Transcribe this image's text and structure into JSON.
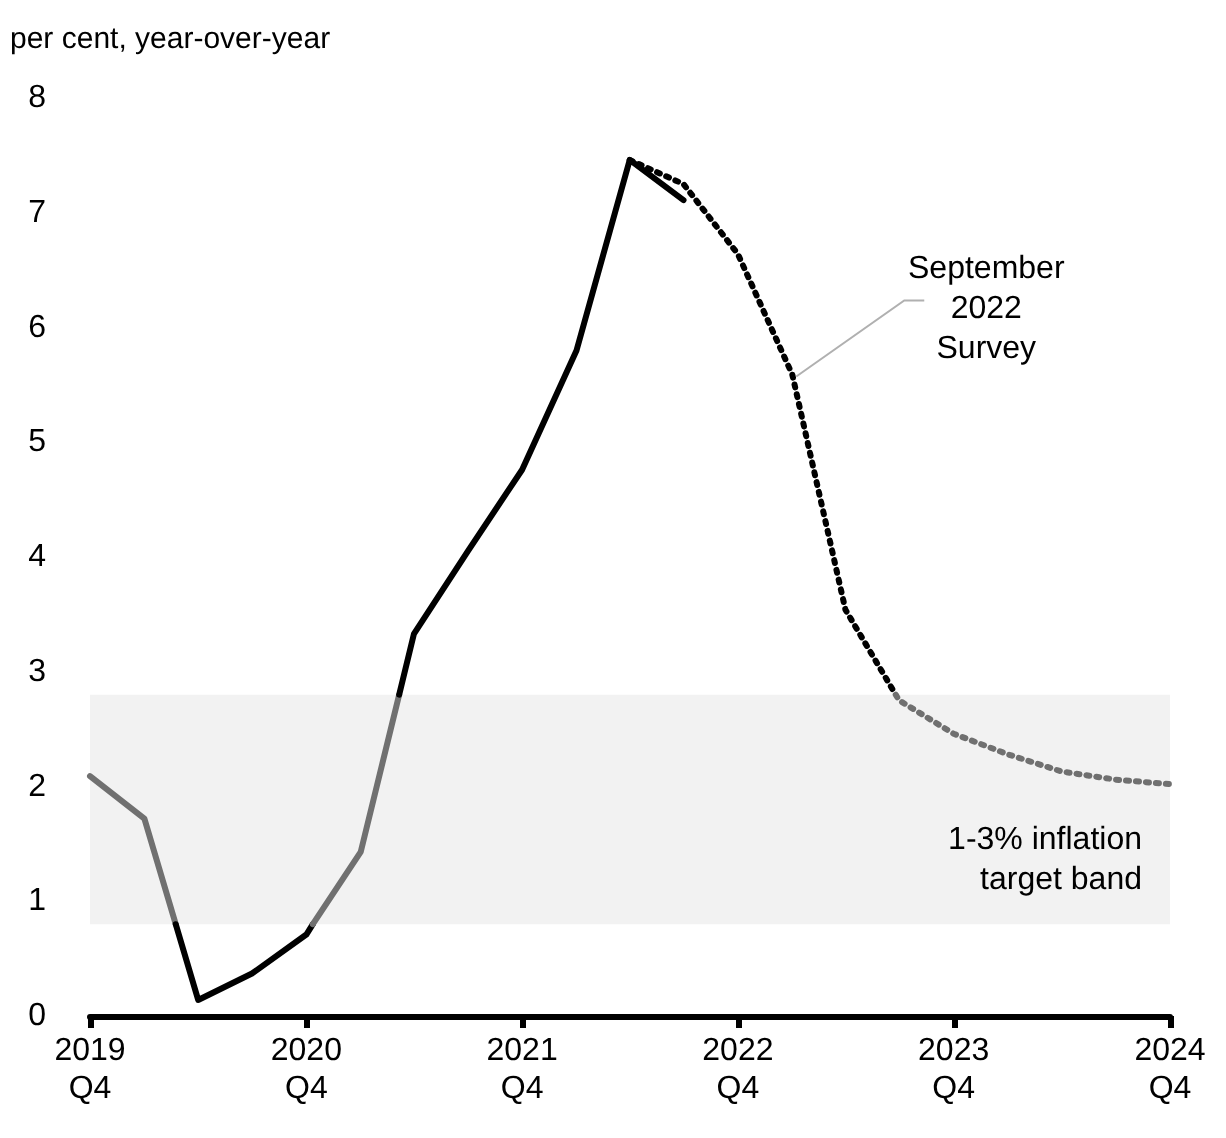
{
  "chart_data": {
    "type": "line",
    "ylabel": "per cent, year-over-year",
    "xlim": [
      "2019-10",
      "2024-10"
    ],
    "xticks": [
      {
        "value": "2019-10",
        "label": "2019\nQ4"
      },
      {
        "value": "2020-10",
        "label": "2020\nQ4"
      },
      {
        "value": "2021-10",
        "label": "2021\nQ4"
      },
      {
        "value": "2022-10",
        "label": "2022\nQ4"
      },
      {
        "value": "2023-10",
        "label": "2023\nQ4"
      },
      {
        "value": "2024-10",
        "label": "2024\nQ4"
      }
    ],
    "ylim": [
      0,
      8
    ],
    "yticks": [
      0,
      1,
      2,
      3,
      4,
      5,
      6,
      7,
      8
    ],
    "grid": false,
    "marker": "none",
    "series": [
      {
        "color": "#707070",
        "line_style": "solid",
        "x": [
          "2019-10",
          "2020-01",
          "2020-02-23"
        ],
        "values": [
          2.09,
          1.72,
          0.8
        ]
      },
      {
        "color": "#000000",
        "line_style": "solid",
        "x": [
          "2020-02-23",
          "2020-04",
          "2020-07",
          "2020-10",
          "2020-10-12"
        ],
        "values": [
          0.8,
          0.14,
          0.37,
          0.71,
          0.8
        ]
      },
      {
        "color": "#707070",
        "line_style": "solid",
        "x": [
          "2020-10-12",
          "2021-01",
          "2021-03-07"
        ],
        "values": [
          0.8,
          1.43,
          2.8
        ]
      },
      {
        "color": "#000000",
        "line_style": "solid",
        "x": [
          "2021-03-07",
          "2021-04",
          "2021-07",
          "2021-10",
          "2022-01",
          "2022-04",
          "2022-07"
        ],
        "values": [
          2.8,
          3.33,
          4.05,
          4.76,
          5.8,
          7.46,
          7.11
        ]
      },
      {
        "color": "#000000",
        "line_style": "dotted",
        "x": [
          "2022-04",
          "2022-07",
          "2022-10",
          "2023-01",
          "2023-04",
          "2023-06-25"
        ],
        "values": [
          7.46,
          7.25,
          6.64,
          5.59,
          3.54,
          2.8
        ]
      },
      {
        "color": "#707070",
        "line_style": "dotted",
        "x": [
          "2023-06-25",
          "2023-07",
          "2023-10",
          "2024-01",
          "2024-04",
          "2024-07",
          "2024-10"
        ],
        "values": [
          2.8,
          2.75,
          2.46,
          2.28,
          2.13,
          2.06,
          2.02
        ]
      }
    ],
    "bands": [
      {
        "axis": "y",
        "from": 0.8,
        "to": 2.8,
        "label": "1-3% inflation\ntarget band",
        "color": "#f2f2f2"
      }
    ],
    "annotations": [
      {
        "text": "September\n2022\nSurvey",
        "x": "2023-01",
        "y": 5.59
      }
    ]
  }
}
